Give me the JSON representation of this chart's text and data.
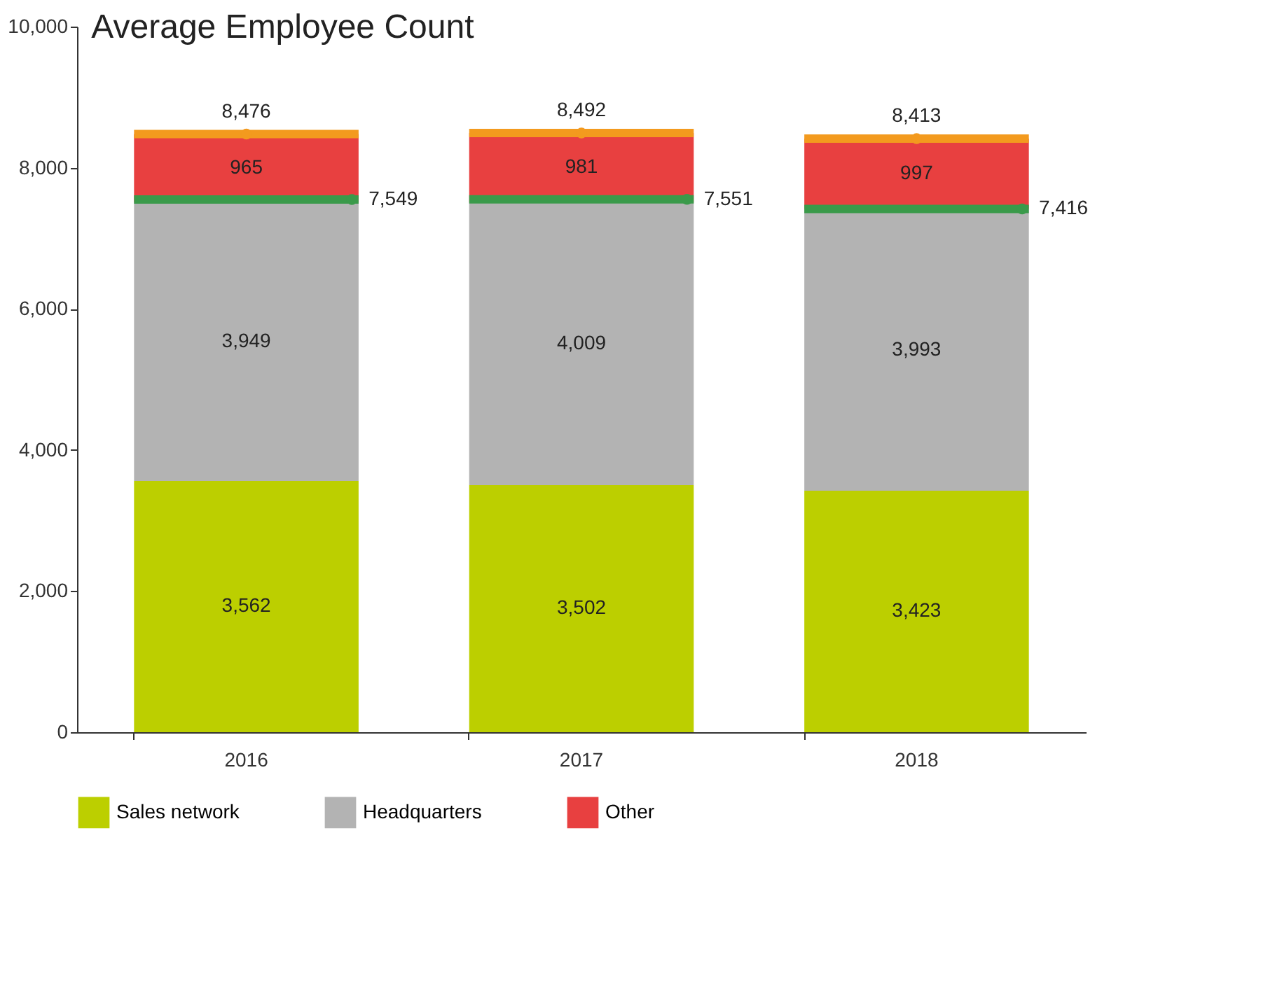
{
  "chart_data": {
    "type": "bar",
    "title": "Average Employee Count",
    "categories": [
      "2016",
      "2017",
      "2018"
    ],
    "stacked": true,
    "legend": "bottom",
    "grid": false,
    "ylim": [
      0,
      10000
    ],
    "yticks": [
      0,
      {
        "value": 2000,
        "label": "2,000"
      },
      {
        "value": 4000,
        "label": "4,000"
      },
      {
        "value": 6000,
        "label": "6,000"
      },
      {
        "value": 8000,
        "label": "8,000"
      },
      {
        "value": 10000,
        "label": "10,000"
      }
    ],
    "series": [
      {
        "name": "Sales network",
        "color": "#bccf00",
        "values": [
          3562,
          3502,
          3423
        ],
        "value_labels": [
          "3,562",
          "3,502",
          "3,423"
        ]
      },
      {
        "name": "Headquarters",
        "color": "#b3b3b3",
        "values": [
          3949,
          4009,
          3993
        ],
        "value_labels": [
          "3,949",
          "4,009",
          "3,993"
        ]
      },
      {
        "name": "Other",
        "color": "#e84040",
        "values": [
          965,
          981,
          997
        ],
        "value_labels": [
          "965",
          "981",
          "997"
        ]
      },
      {
        "type": "scatter",
        "color": "#3a9a4a",
        "values": [
          7549,
          7551,
          7416
        ],
        "value_labels": [
          "7,549",
          "7,551",
          "7,416"
        ]
      },
      {
        "type": "scatter",
        "color": "#f39a1e",
        "values": [
          8476,
          8492,
          8413
        ],
        "value_labels": [
          "8,476",
          "8,492",
          "8,413"
        ]
      }
    ]
  }
}
